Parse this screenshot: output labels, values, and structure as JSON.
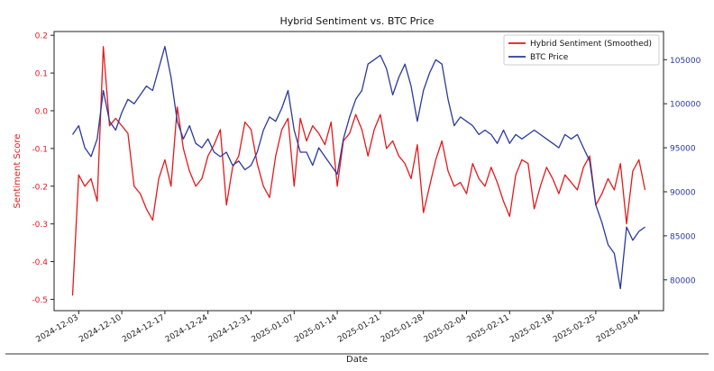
{
  "chart_data": {
    "type": "line",
    "title": "Hybrid Sentiment vs. BTC Price",
    "xlabel": "Date",
    "ylabel_left": "Sentiment Score",
    "ylabel_right": "",
    "x_range": [
      "2024-11-29",
      "2025-03-08"
    ],
    "ylim_left": [
      -0.53,
      0.21
    ],
    "ylim_right": [
      76500,
      108200
    ],
    "x_ticks": [
      "2024-12-03",
      "2024-12-10",
      "2024-12-17",
      "2024-12-24",
      "2024-12-31",
      "2025-01-07",
      "2025-01-14",
      "2025-01-21",
      "2025-01-28",
      "2025-02-04",
      "2025-02-11",
      "2025-02-18",
      "2025-02-25",
      "2025-03-04"
    ],
    "y_ticks_left": [
      -0.5,
      -0.4,
      -0.3,
      -0.2,
      -0.1,
      0.0,
      0.1,
      0.2
    ],
    "y_ticks_left_labels": [
      "-0.5",
      "-0.4",
      "-0.3",
      "-0.2",
      "-0.1",
      "0.0",
      "0.1",
      "0.2"
    ],
    "y_ticks_right": [
      80000,
      85000,
      90000,
      95000,
      100000,
      105000
    ],
    "y_ticks_right_labels": [
      "80000",
      "85000",
      "90000",
      "95000",
      "100000",
      "105000"
    ],
    "grid": false,
    "legend_position": "top-right",
    "series": [
      {
        "name": "Hybrid Sentiment (Smoothed)",
        "axis": "left",
        "color": "#e31a1c",
        "x": [
          "2024-12-02",
          "2024-12-03",
          "2024-12-04",
          "2024-12-05",
          "2024-12-06",
          "2024-12-07",
          "2024-12-08",
          "2024-12-09",
          "2024-12-10",
          "2024-12-11",
          "2024-12-12",
          "2024-12-13",
          "2024-12-14",
          "2024-12-15",
          "2024-12-16",
          "2024-12-17",
          "2024-12-18",
          "2024-12-19",
          "2024-12-20",
          "2024-12-21",
          "2024-12-22",
          "2024-12-23",
          "2024-12-24",
          "2024-12-25",
          "2024-12-26",
          "2024-12-27",
          "2024-12-28",
          "2024-12-29",
          "2024-12-30",
          "2024-12-31",
          "2025-01-01",
          "2025-01-02",
          "2025-01-03",
          "2025-01-04",
          "2025-01-05",
          "2025-01-06",
          "2025-01-07",
          "2025-01-08",
          "2025-01-09",
          "2025-01-10",
          "2025-01-11",
          "2025-01-12",
          "2025-01-13",
          "2025-01-14",
          "2025-01-15",
          "2025-01-16",
          "2025-01-17",
          "2025-01-18",
          "2025-01-19",
          "2025-01-20",
          "2025-01-21",
          "2025-01-22",
          "2025-01-23",
          "2025-01-24",
          "2025-01-25",
          "2025-01-26",
          "2025-01-27",
          "2025-01-28",
          "2025-01-29",
          "2025-01-30",
          "2025-01-31",
          "2025-02-01",
          "2025-02-02",
          "2025-02-03",
          "2025-02-04",
          "2025-02-05",
          "2025-02-06",
          "2025-02-07",
          "2025-02-08",
          "2025-02-09",
          "2025-02-10",
          "2025-02-11",
          "2025-02-12",
          "2025-02-13",
          "2025-02-14",
          "2025-02-15",
          "2025-02-16",
          "2025-02-17",
          "2025-02-18",
          "2025-02-19",
          "2025-02-20",
          "2025-02-21",
          "2025-02-22",
          "2025-02-23",
          "2025-02-24",
          "2025-02-25",
          "2025-02-26",
          "2025-02-27",
          "2025-02-28",
          "2025-03-01",
          "2025-03-02",
          "2025-03-03",
          "2025-03-04",
          "2025-03-05"
        ],
        "values": [
          -0.49,
          -0.17,
          -0.2,
          -0.18,
          -0.24,
          0.17,
          -0.04,
          -0.02,
          -0.04,
          -0.06,
          -0.2,
          -0.22,
          -0.26,
          -0.29,
          -0.18,
          -0.13,
          -0.2,
          0.01,
          -0.1,
          -0.16,
          -0.2,
          -0.18,
          -0.12,
          -0.09,
          -0.05,
          -0.25,
          -0.15,
          -0.12,
          -0.03,
          -0.05,
          -0.14,
          -0.2,
          -0.23,
          -0.12,
          -0.05,
          -0.02,
          -0.2,
          -0.02,
          -0.08,
          -0.04,
          -0.06,
          -0.09,
          -0.03,
          -0.2,
          -0.08,
          -0.06,
          -0.01,
          -0.05,
          -0.12,
          -0.05,
          -0.01,
          -0.1,
          -0.08,
          -0.12,
          -0.14,
          -0.18,
          -0.09,
          -0.27,
          -0.2,
          -0.13,
          -0.08,
          -0.16,
          -0.2,
          -0.19,
          -0.22,
          -0.14,
          -0.18,
          -0.2,
          -0.15,
          -0.19,
          -0.24,
          -0.28,
          -0.17,
          -0.13,
          -0.14,
          -0.26,
          -0.2,
          -0.15,
          -0.18,
          -0.22,
          -0.17,
          -0.19,
          -0.21,
          -0.15,
          -0.12,
          -0.25,
          -0.22,
          -0.18,
          -0.21,
          -0.14,
          -0.3,
          -0.16,
          -0.13,
          -0.21
        ]
      },
      {
        "name": "BTC Price",
        "axis": "right",
        "color": "#2b3a9c",
        "x": [
          "2024-12-02",
          "2024-12-03",
          "2024-12-04",
          "2024-12-05",
          "2024-12-06",
          "2024-12-07",
          "2024-12-08",
          "2024-12-09",
          "2024-12-10",
          "2024-12-11",
          "2024-12-12",
          "2024-12-13",
          "2024-12-14",
          "2024-12-15",
          "2024-12-16",
          "2024-12-17",
          "2024-12-18",
          "2024-12-19",
          "2024-12-20",
          "2024-12-21",
          "2024-12-22",
          "2024-12-23",
          "2024-12-24",
          "2024-12-25",
          "2024-12-26",
          "2024-12-27",
          "2024-12-28",
          "2024-12-29",
          "2024-12-30",
          "2024-12-31",
          "2025-01-01",
          "2025-01-02",
          "2025-01-03",
          "2025-01-04",
          "2025-01-05",
          "2025-01-06",
          "2025-01-07",
          "2025-01-08",
          "2025-01-09",
          "2025-01-10",
          "2025-01-11",
          "2025-01-12",
          "2025-01-13",
          "2025-01-14",
          "2025-01-15",
          "2025-01-16",
          "2025-01-17",
          "2025-01-18",
          "2025-01-19",
          "2025-01-20",
          "2025-01-21",
          "2025-01-22",
          "2025-01-23",
          "2025-01-24",
          "2025-01-25",
          "2025-01-26",
          "2025-01-27",
          "2025-01-28",
          "2025-01-29",
          "2025-01-30",
          "2025-01-31",
          "2025-02-01",
          "2025-02-02",
          "2025-02-03",
          "2025-02-04",
          "2025-02-05",
          "2025-02-06",
          "2025-02-07",
          "2025-02-08",
          "2025-02-09",
          "2025-02-10",
          "2025-02-11",
          "2025-02-12",
          "2025-02-13",
          "2025-02-14",
          "2025-02-15",
          "2025-02-16",
          "2025-02-17",
          "2025-02-18",
          "2025-02-19",
          "2025-02-20",
          "2025-02-21",
          "2025-02-22",
          "2025-02-23",
          "2025-02-24",
          "2025-02-25",
          "2025-02-26",
          "2025-02-27",
          "2025-02-28",
          "2025-03-01",
          "2025-03-02",
          "2025-03-03",
          "2025-03-04",
          "2025-03-05"
        ],
        "values": [
          96500,
          97500,
          95000,
          94000,
          96000,
          101500,
          98000,
          97000,
          99000,
          100500,
          100000,
          101000,
          102000,
          101500,
          104000,
          106500,
          103000,
          98000,
          96000,
          97500,
          95500,
          95000,
          96000,
          94500,
          94000,
          94500,
          93000,
          93500,
          92500,
          93000,
          94500,
          97000,
          98500,
          98000,
          99500,
          101500,
          97000,
          94500,
          94500,
          93000,
          95000,
          94000,
          93000,
          92000,
          96000,
          98500,
          100500,
          101500,
          104500,
          105000,
          105500,
          104000,
          101000,
          103000,
          104500,
          102000,
          98000,
          101500,
          103500,
          105000,
          104500,
          100500,
          97500,
          98500,
          98000,
          97500,
          96500,
          97000,
          96500,
          95500,
          97000,
          95500,
          96500,
          96000,
          96500,
          97000,
          96500,
          96000,
          95500,
          95000,
          96500,
          96000,
          96500,
          95000,
          93500,
          88500,
          86500,
          84000,
          83000,
          79000,
          86000,
          84500,
          85500,
          86000
        ]
      }
    ]
  }
}
